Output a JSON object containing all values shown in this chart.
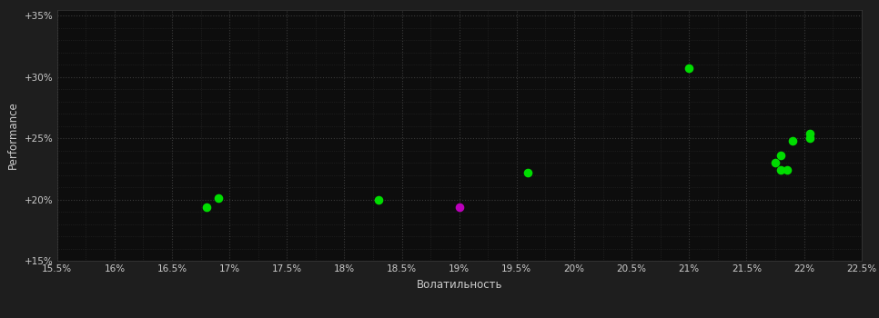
{
  "background_color": "#1e1e1e",
  "plot_bg_color": "#0d0d0d",
  "grid_color": "#3a3a3a",
  "minor_grid_color": "#2a2a2a",
  "text_color": "#cccccc",
  "xlabel": "Волатильность",
  "ylabel": "Performance",
  "xlim": [
    0.155,
    0.225
  ],
  "ylim": [
    0.15,
    0.355
  ],
  "xticks": [
    0.155,
    0.16,
    0.165,
    0.17,
    0.175,
    0.18,
    0.185,
    0.19,
    0.195,
    0.2,
    0.205,
    0.21,
    0.215,
    0.22,
    0.225
  ],
  "yticks": [
    0.15,
    0.2,
    0.25,
    0.3,
    0.35
  ],
  "ytick_labels": [
    "+15%",
    "+20%",
    "+25%",
    "+30%",
    "+35%"
  ],
  "xtick_labels": [
    "15.5%",
    "16%",
    "16.5%",
    "17%",
    "17.5%",
    "18%",
    "18.5%",
    "19%",
    "19.5%",
    "20%",
    "20.5%",
    "21%",
    "21.5%",
    "22%",
    "22.5%"
  ],
  "green_points": [
    [
      0.169,
      0.2015
    ],
    [
      0.168,
      0.194
    ],
    [
      0.183,
      0.2
    ],
    [
      0.196,
      0.222
    ],
    [
      0.21,
      0.307
    ],
    [
      0.218,
      0.236
    ],
    [
      0.219,
      0.248
    ],
    [
      0.2175,
      0.23
    ],
    [
      0.218,
      0.224
    ],
    [
      0.2185,
      0.224
    ],
    [
      0.2205,
      0.254
    ],
    [
      0.2205,
      0.25
    ]
  ],
  "magenta_points": [
    [
      0.19,
      0.194
    ]
  ],
  "point_size": 35,
  "green_color": "#00dd00",
  "magenta_color": "#bb00bb"
}
